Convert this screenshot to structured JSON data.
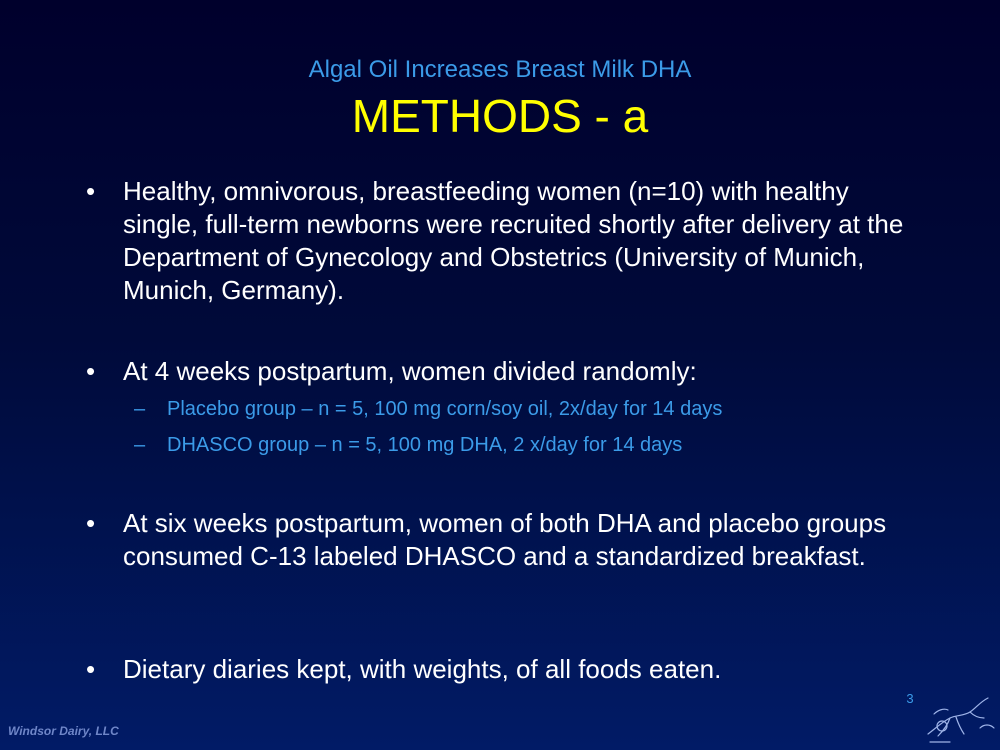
{
  "slide": {
    "subtitle": "Algal Oil Increases Breast Milk DHA",
    "title": "METHODS - a",
    "bullet_marker": "•",
    "sub_marker": "–",
    "bullets": [
      {
        "text": "Healthy, omnivorous, breastfeeding women (n=10) with healthy single, full-term newborns were recruited shortly after delivery at the Department of Gynecology and Obstetrics (University of Munich, Munich, Germany)."
      },
      {
        "text": "At 4 weeks postpartum, women divided randomly:",
        "subitems": [
          "Placebo group – n = 5,  100 mg corn/soy oil, 2x/day for 14 days",
          "DHASCO group – n = 5, 100 mg DHA, 2 x/day for 14 days"
        ]
      },
      {
        "text": "At six weeks postpartum, women of both DHA and placebo groups consumed C-13 labeled DHASCO and a standardized breakfast."
      },
      {
        "text": "Dietary diaries kept, with weights, of all foods eaten."
      }
    ],
    "page_number": "3",
    "footer": "Windsor Dairy, LLC",
    "logo_icon": "windsor-dairy-logo-icon"
  }
}
